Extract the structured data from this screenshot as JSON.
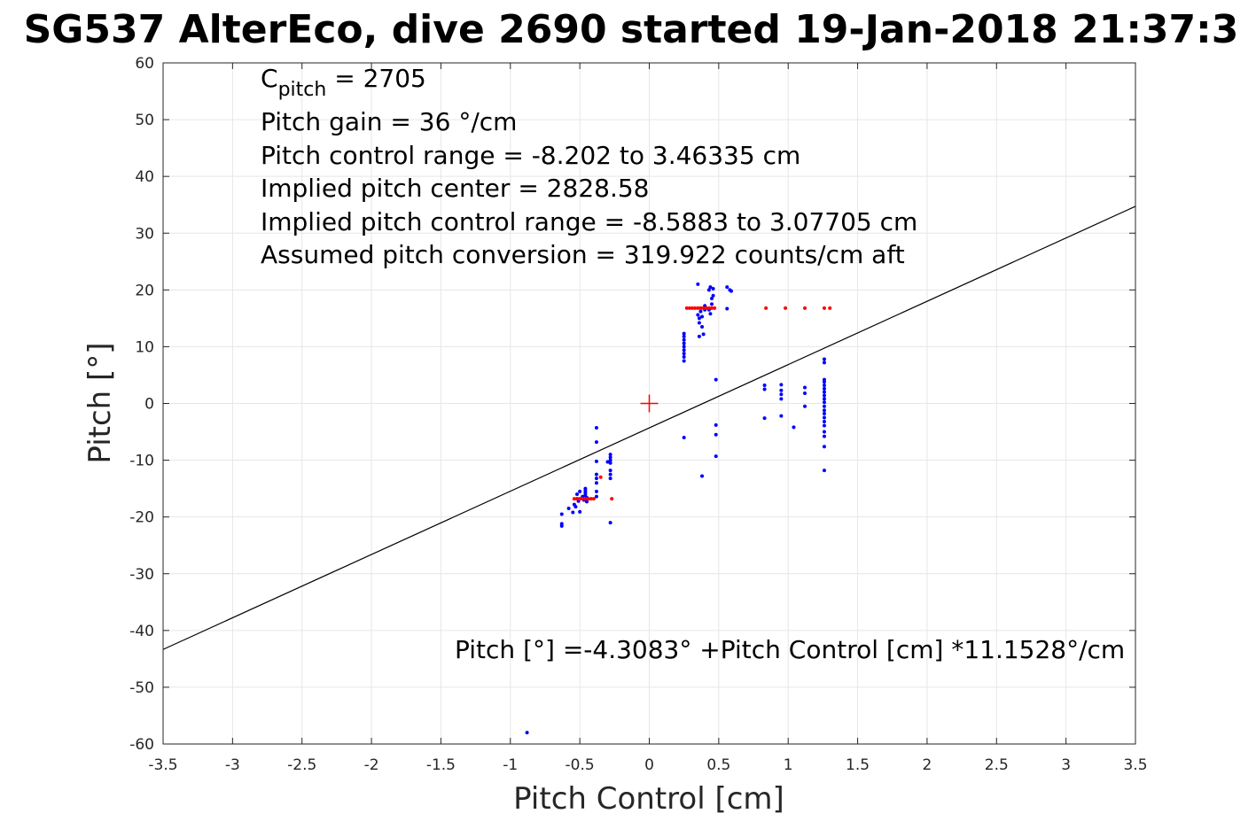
{
  "chart_data": {
    "type": "scatter",
    "title": "SG537 AlterEco, dive 2690 started 19-Jan-2018 21:37:3",
    "xlabel": "Pitch Control [cm]",
    "ylabel": "Pitch [°]",
    "xlim": [
      -3.5,
      3.5
    ],
    "ylim": [
      -60,
      60
    ],
    "xticks": [
      -3.5,
      -3,
      -2.5,
      -2,
      -1.5,
      -1,
      -0.5,
      0,
      0.5,
      1,
      1.5,
      2,
      2.5,
      3,
      3.5
    ],
    "yticks": [
      -60,
      -50,
      -40,
      -30,
      -20,
      -10,
      0,
      10,
      20,
      30,
      40,
      50,
      60
    ],
    "xtick_labels": [
      "-3.5",
      "-3",
      "-2.5",
      "-2",
      "-1.5",
      "-1",
      "-0.5",
      "0",
      "0.5",
      "1",
      "1.5",
      "2",
      "2.5",
      "3",
      "3.5"
    ],
    "ytick_labels": [
      "-60",
      "-50",
      "-40",
      "-30",
      "-20",
      "-10",
      "0",
      "10",
      "20",
      "30",
      "40",
      "50",
      "60"
    ],
    "grid": true,
    "annotations": {
      "cpitch_main": "C",
      "cpitch_sub": "pitch",
      "cpitch_value": " = 2705",
      "lines": [
        "Pitch gain = 36 °/cm",
        "Pitch control range = -8.202 to 3.46335 cm",
        "Implied pitch center = 2828.58",
        "Implied pitch control range = -8.5883 to 3.07705 cm",
        "Assumed pitch conversion = 319.922 counts/cm aft"
      ],
      "fit_equation": "Pitch [°] =-4.3083° +Pitch Control [cm] *11.1528°/cm"
    },
    "fit_line": {
      "intercept": -4.3083,
      "slope": 11.1528,
      "color": "#000000"
    },
    "center_marker": {
      "x": 0,
      "y": 0,
      "color": "#ff0000"
    },
    "series": [
      {
        "color": "#0000ff",
        "points": [
          [
            -0.63,
            -21.2
          ],
          [
            -0.63,
            -21.6
          ],
          [
            -0.63,
            -19.5
          ],
          [
            -0.58,
            -18.5
          ],
          [
            -0.55,
            -19.2
          ],
          [
            -0.54,
            -17.8
          ],
          [
            -0.53,
            -18.2
          ],
          [
            -0.52,
            -16.8
          ],
          [
            -0.52,
            -16.0
          ],
          [
            -0.51,
            -16.9
          ],
          [
            -0.51,
            -17.2
          ],
          [
            -0.5,
            -15.5
          ],
          [
            -0.5,
            -19.1
          ],
          [
            -0.48,
            -16.4
          ],
          [
            -0.47,
            -17.0
          ],
          [
            -0.46,
            -16.2
          ],
          [
            -0.46,
            -15.8
          ],
          [
            -0.46,
            -15.4
          ],
          [
            -0.46,
            -15.0
          ],
          [
            -0.45,
            -16.6
          ],
          [
            -0.45,
            -17.3
          ],
          [
            -0.38,
            -4.3
          ],
          [
            -0.38,
            -6.8
          ],
          [
            -0.38,
            -10.2
          ],
          [
            -0.38,
            -12.5
          ],
          [
            -0.38,
            -13.2
          ],
          [
            -0.38,
            -14.0
          ],
          [
            -0.38,
            -15.5
          ],
          [
            -0.38,
            -16.4
          ],
          [
            -0.28,
            -9.0
          ],
          [
            -0.28,
            -9.5
          ],
          [
            -0.28,
            -10.0
          ],
          [
            -0.28,
            -10.5
          ],
          [
            -0.28,
            -11.8
          ],
          [
            -0.28,
            -12.5
          ],
          [
            -0.28,
            -13.2
          ],
          [
            -0.28,
            -21.0
          ],
          [
            -0.3,
            -10.3
          ],
          [
            0.25,
            -6.0
          ],
          [
            0.25,
            7.5
          ],
          [
            0.25,
            8.2
          ],
          [
            0.25,
            8.8
          ],
          [
            0.25,
            9.4
          ],
          [
            0.25,
            10.0
          ],
          [
            0.25,
            10.6
          ],
          [
            0.25,
            11.2
          ],
          [
            0.25,
            11.8
          ],
          [
            0.25,
            12.3
          ],
          [
            0.35,
            21.0
          ],
          [
            0.35,
            15.6
          ],
          [
            0.36,
            15.0
          ],
          [
            0.36,
            14.2
          ],
          [
            0.36,
            11.8
          ],
          [
            0.37,
            16.2
          ],
          [
            0.37,
            16.8
          ],
          [
            0.38,
            15.3
          ],
          [
            0.38,
            13.5
          ],
          [
            0.39,
            12.2
          ],
          [
            0.4,
            16.5
          ],
          [
            0.4,
            17.2
          ],
          [
            0.43,
            20.0
          ],
          [
            0.43,
            16.5
          ],
          [
            0.44,
            15.8
          ],
          [
            0.44,
            20.5
          ],
          [
            0.45,
            18.5
          ],
          [
            0.45,
            17.5
          ],
          [
            0.46,
            19.0
          ],
          [
            0.46,
            20.2
          ],
          [
            0.38,
            -12.8
          ],
          [
            0.48,
            4.2
          ],
          [
            0.48,
            -3.8
          ],
          [
            0.48,
            -5.5
          ],
          [
            0.48,
            -9.3
          ],
          [
            0.56,
            20.5
          ],
          [
            0.56,
            16.7
          ],
          [
            0.58,
            20.0
          ],
          [
            0.59,
            19.8
          ],
          [
            0.83,
            3.2
          ],
          [
            0.83,
            2.5
          ],
          [
            0.83,
            -2.6
          ],
          [
            0.95,
            3.3
          ],
          [
            0.95,
            2.3
          ],
          [
            0.95,
            1.6
          ],
          [
            0.95,
            0.8
          ],
          [
            0.95,
            -2.2
          ],
          [
            1.04,
            -4.2
          ],
          [
            1.12,
            2.8
          ],
          [
            1.12,
            1.8
          ],
          [
            1.12,
            -0.5
          ],
          [
            1.26,
            7.8
          ],
          [
            1.26,
            7.2
          ],
          [
            1.26,
            4.2
          ],
          [
            1.26,
            3.8
          ],
          [
            1.26,
            3.2
          ],
          [
            1.26,
            2.6
          ],
          [
            1.26,
            2.0
          ],
          [
            1.26,
            1.4
          ],
          [
            1.26,
            0.8
          ],
          [
            1.26,
            0.2
          ],
          [
            1.26,
            -0.5
          ],
          [
            1.26,
            -1.2
          ],
          [
            1.26,
            -1.8
          ],
          [
            1.26,
            -2.5
          ],
          [
            1.26,
            -3.2
          ],
          [
            1.26,
            -3.9
          ],
          [
            1.26,
            -5.0
          ],
          [
            1.26,
            -5.8
          ],
          [
            1.26,
            -7.6
          ],
          [
            1.26,
            -11.8
          ],
          [
            -0.88,
            -58.0
          ]
        ]
      },
      {
        "color": "#ff0000",
        "points": [
          [
            -0.54,
            -16.8
          ],
          [
            -0.52,
            -16.8
          ],
          [
            -0.5,
            -16.8
          ],
          [
            -0.48,
            -16.8
          ],
          [
            -0.46,
            -16.8
          ],
          [
            -0.44,
            -16.8
          ],
          [
            -0.42,
            -16.8
          ],
          [
            -0.4,
            -16.8
          ],
          [
            -0.27,
            -16.8
          ],
          [
            -0.35,
            -13.0
          ],
          [
            0.27,
            16.8
          ],
          [
            0.29,
            16.8
          ],
          [
            0.31,
            16.8
          ],
          [
            0.33,
            16.8
          ],
          [
            0.35,
            16.8
          ],
          [
            0.37,
            16.8
          ],
          [
            0.39,
            16.8
          ],
          [
            0.41,
            16.8
          ],
          [
            0.43,
            16.8
          ],
          [
            0.45,
            16.8
          ],
          [
            0.47,
            16.8
          ],
          [
            0.84,
            16.8
          ],
          [
            0.98,
            16.8
          ],
          [
            1.12,
            16.8
          ],
          [
            1.26,
            16.8
          ],
          [
            1.3,
            16.8
          ]
        ]
      }
    ]
  }
}
